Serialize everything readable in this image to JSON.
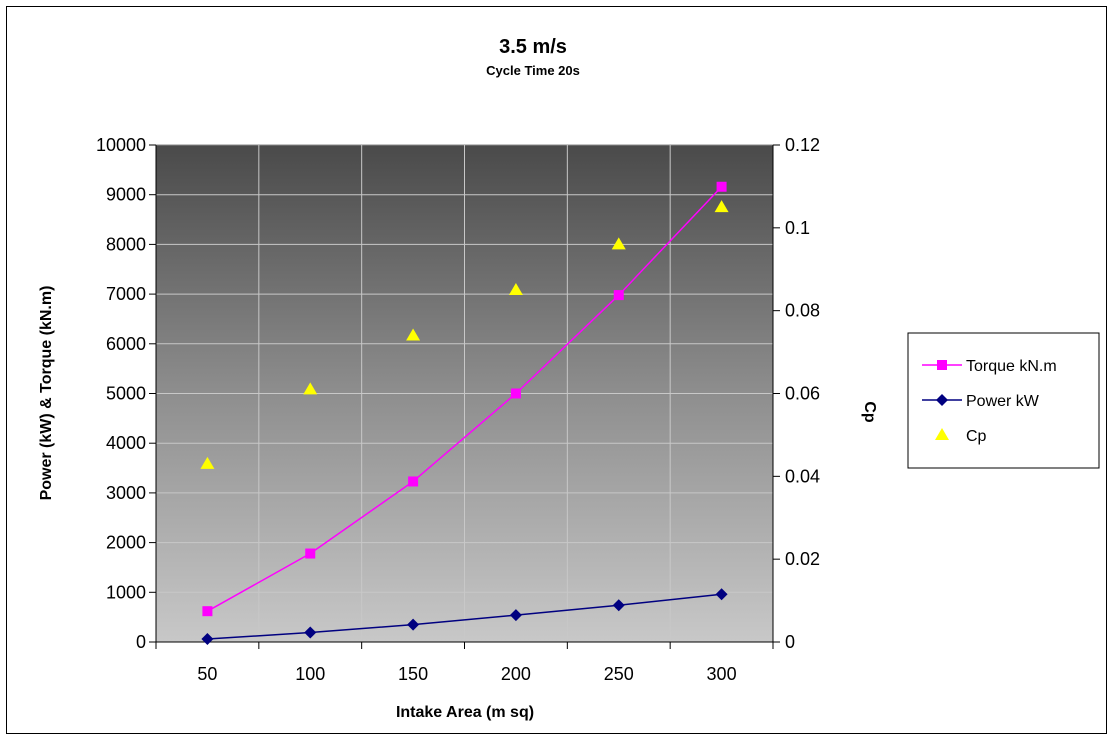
{
  "chart_data": {
    "type": "line",
    "title": "3.5 m/s",
    "subtitle": "Cycle Time 20s",
    "xlabel": "Intake Area (m sq)",
    "ylabel": "Power (kW) & Torque (kN.m)",
    "y2label": "Cp",
    "categories": [
      "50",
      "100",
      "150",
      "200",
      "250",
      "300"
    ],
    "ylim": [
      0,
      10000
    ],
    "yticks": [
      "0",
      "1000",
      "2000",
      "3000",
      "4000",
      "5000",
      "6000",
      "7000",
      "8000",
      "9000",
      "10000"
    ],
    "y2lim": [
      0,
      0.12
    ],
    "y2ticks": [
      "0",
      "0.02",
      "0.04",
      "0.06",
      "0.08",
      "0.1",
      "0.12"
    ],
    "grid": true,
    "legend_position": "right",
    "series": [
      {
        "name": "Torque kN.m",
        "axis": "left",
        "marker": "square",
        "line": true,
        "color": "#ff00ff",
        "values": [
          620,
          1780,
          3230,
          5000,
          6980,
          9160
        ]
      },
      {
        "name": "Power kW",
        "axis": "left",
        "marker": "diamond",
        "line": true,
        "color": "#000080",
        "values": [
          60,
          190,
          350,
          540,
          740,
          960
        ]
      },
      {
        "name": "Cp",
        "axis": "right",
        "marker": "triangle",
        "line": false,
        "color": "#ffff00",
        "values": [
          0.043,
          0.061,
          0.074,
          0.085,
          0.096,
          0.105
        ]
      }
    ]
  }
}
